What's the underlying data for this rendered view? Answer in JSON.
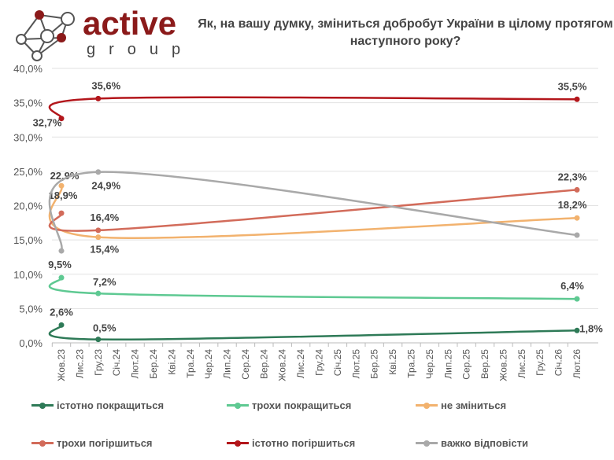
{
  "title": "Як, на вашу думку, зміниться добробут України в цілому протягом наступного року?",
  "logo": {
    "brand": "active",
    "sub": "group"
  },
  "chart_data": {
    "type": "line",
    "title": "Як, на вашу думку, зміниться добробут України в цілому протягом наступного року?",
    "categories": [
      "Жов.23",
      "Лис.23",
      "Гру.23",
      "Січ.24",
      "Лют.24",
      "Бер.24",
      "Кві.24",
      "Тра.24",
      "Чер.24",
      "Лип.24",
      "Сер.24",
      "Вер.24",
      "Жов.24",
      "Лис.24",
      "Гру.24",
      "Січ.25",
      "Лют.25",
      "Бер.25",
      "Кві.25",
      "Тра.25",
      "Чер.25",
      "Лип.25",
      "Сер.25",
      "Вер.25",
      "Жов.25",
      "Лис.25",
      "Гру.25",
      "Січ.26",
      "Лют.26"
    ],
    "y_ticks": [
      "0,0%",
      "5,0%",
      "10,0%",
      "15,0%",
      "20,0%",
      "25,0%",
      "30,0%",
      "35,0%",
      "40,0%"
    ],
    "ylim": [
      0,
      40
    ],
    "grid": true,
    "legend_position": "bottom",
    "series": [
      {
        "name": "істотно покращиться",
        "color": "#2e7a57",
        "points": [
          [
            0,
            2.6,
            "2,6%"
          ],
          [
            2,
            0.5,
            "0,5%"
          ],
          [
            28,
            1.8,
            "1,8%"
          ]
        ]
      },
      {
        "name": "трохи покращиться",
        "color": "#5ec992",
        "points": [
          [
            0,
            9.5,
            "9,5%"
          ],
          [
            2,
            7.2,
            "7,2%"
          ],
          [
            28,
            6.4,
            "6,4%"
          ]
        ]
      },
      {
        "name": "не зміниться",
        "color": "#f2b26e",
        "points": [
          [
            0,
            22.9,
            "22,9%"
          ],
          [
            2,
            15.4,
            "15,4%"
          ],
          [
            28,
            18.2,
            "18,2%"
          ]
        ]
      },
      {
        "name": "трохи погіршиться",
        "color": "#d26b5a",
        "points": [
          [
            0,
            18.9,
            "18,9%"
          ],
          [
            2,
            16.4,
            "16,4%"
          ],
          [
            28,
            22.3,
            "22,3%"
          ]
        ]
      },
      {
        "name": "істотно погіршиться",
        "color": "#b3161b",
        "points": [
          [
            0,
            32.7,
            "32,7%"
          ],
          [
            2,
            35.6,
            "35,6%"
          ],
          [
            28,
            35.5,
            "35,5%"
          ]
        ]
      },
      {
        "name": "важко відповісти",
        "color": "#a9a9a9",
        "points": [
          [
            0,
            13.4,
            null
          ],
          [
            2,
            24.9,
            "24,9%"
          ],
          [
            28,
            15.7,
            null
          ]
        ]
      }
    ]
  }
}
